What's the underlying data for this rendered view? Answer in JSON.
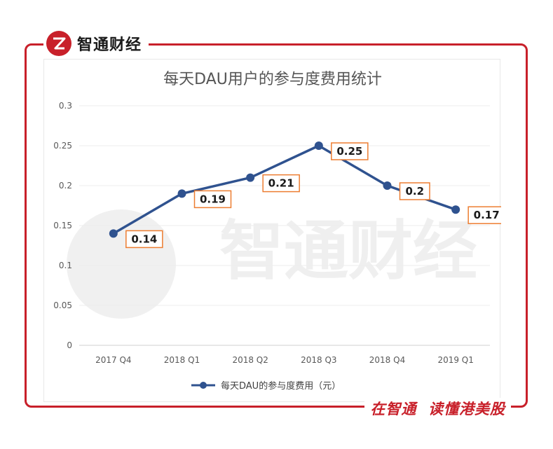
{
  "brand": {
    "name": "智通财经"
  },
  "footer": {
    "slogan": "在智通  读懂港美股"
  },
  "watermark": {
    "text": "智通财经"
  },
  "colors": {
    "accent": "#c8202a",
    "series": "#2f528f",
    "label_border": "#ed7d31"
  },
  "chart_data": {
    "type": "line",
    "title": "每天DAU用户的参与度费用统计",
    "categories": [
      "2017 Q4",
      "2018 Q1",
      "2018 Q2",
      "2018 Q3",
      "2018 Q4",
      "2019 Q1"
    ],
    "series": [
      {
        "name": "每天DAU的参与度费用（元）",
        "values": [
          0.14,
          0.19,
          0.21,
          0.25,
          0.2,
          0.17
        ]
      }
    ],
    "data_labels": [
      "0.14",
      "0.19",
      "0.21",
      "0.25",
      "0.2",
      "0.17"
    ],
    "yticks": [
      "0",
      "0.05",
      "0.1",
      "0.15",
      "0.2",
      "0.25",
      "0.3"
    ],
    "ylim": [
      0,
      0.3
    ],
    "grid": true,
    "legend_position": "bottom"
  }
}
